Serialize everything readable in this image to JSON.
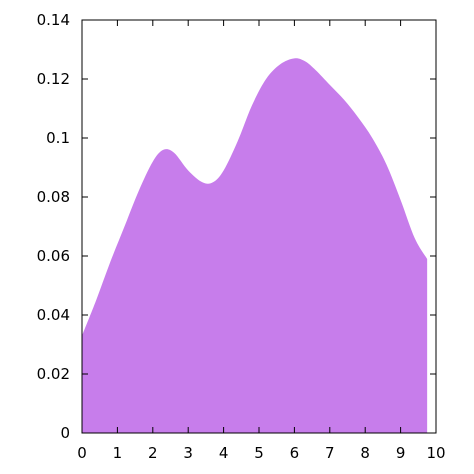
{
  "chart_data": {
    "type": "area",
    "title": "",
    "xlabel": "",
    "ylabel": "",
    "xlim": [
      0,
      10
    ],
    "ylim": [
      0,
      0.14
    ],
    "x_ticks": [
      "0",
      "1",
      "2",
      "3",
      "4",
      "5",
      "6",
      "7",
      "8",
      "9",
      "10"
    ],
    "y_ticks": [
      "0",
      "0.02",
      "0.04",
      "0.06",
      "0.08",
      "0.1",
      "0.12",
      "0.14"
    ],
    "grid": false,
    "legend": false,
    "fill_color": "#c77deb",
    "series": [
      {
        "x": [
          0,
          0.4,
          0.8,
          1.2,
          1.6,
          2.0,
          2.3,
          2.6,
          3.0,
          3.4,
          3.7,
          4.0,
          4.4,
          4.8,
          5.2,
          5.6,
          6.0,
          6.3,
          6.6,
          7.0,
          7.4,
          7.8,
          8.2,
          8.6,
          9.0,
          9.4,
          9.75
        ],
        "y": [
          0.033,
          0.045,
          0.058,
          0.07,
          0.082,
          0.092,
          0.096,
          0.095,
          0.089,
          0.085,
          0.085,
          0.089,
          0.099,
          0.111,
          0.12,
          0.125,
          0.127,
          0.126,
          0.123,
          0.118,
          0.113,
          0.107,
          0.1,
          0.091,
          0.079,
          0.066,
          0.059
        ]
      }
    ]
  }
}
